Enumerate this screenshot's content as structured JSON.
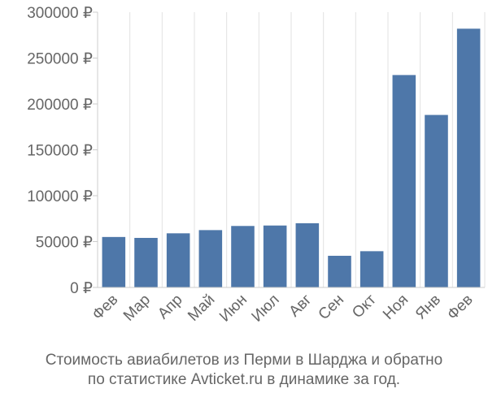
{
  "chart_data": {
    "type": "bar",
    "categories": [
      "Фев",
      "Мар",
      "Апр",
      "Май",
      "Июн",
      "Июл",
      "Авг",
      "Сен",
      "Окт",
      "Ноя",
      "Янв",
      "Фев"
    ],
    "values": [
      55000,
      54000,
      59000,
      62500,
      67000,
      67500,
      70000,
      34500,
      39500,
      231500,
      188000,
      282000
    ],
    "ylim": [
      0,
      300000
    ],
    "yticks": [
      0,
      50000,
      100000,
      150000,
      200000,
      250000,
      300000
    ],
    "ytick_labels": [
      "0 ₽",
      "50000 ₽",
      "100000 ₽",
      "150000 ₽",
      "200000 ₽",
      "250000 ₽",
      "300000 ₽"
    ],
    "grid": "vertical",
    "bar_color": "#4e77a9",
    "title": "",
    "xlabel": "",
    "ylabel": ""
  },
  "caption": {
    "line1": "Стоимость авиабилетов из Перми в Шарджа и обратно",
    "line2": "по статистике Avticket.ru в динамике за год."
  }
}
